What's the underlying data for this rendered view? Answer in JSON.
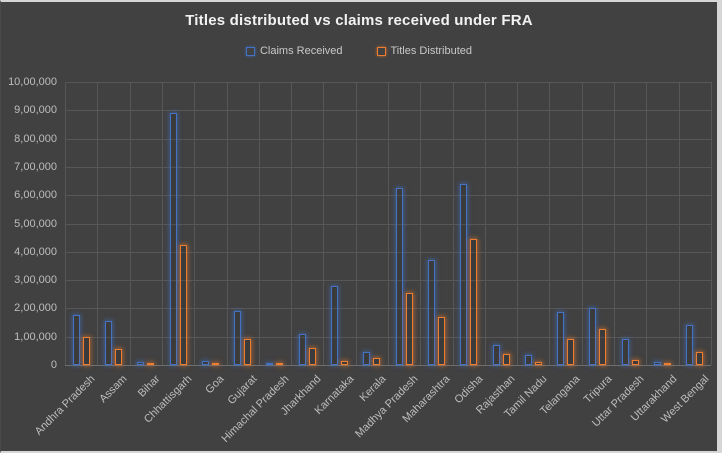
{
  "colors": {
    "background": "#414141",
    "gridline": "#575757",
    "axis_line": "#6f6f6f",
    "tick_text": "#bdbdbd",
    "title_text": "#f2f2f2",
    "claims_blue": "#4472c4",
    "titles_orange": "#ed7d31"
  },
  "chart_data": {
    "type": "bar",
    "title": "Titles distributed vs claims received under FRA",
    "legend_position": "top",
    "grid": true,
    "ylim": [
      0,
      1000000
    ],
    "y_tick_step": 100000,
    "y_tick_labels": [
      "10,00,000",
      "9,00,000",
      "8,00,000",
      "7,00,000",
      "6,00,000",
      "5,00,000",
      "4,00,000",
      "3,00,000",
      "2,00,000",
      "1,00,000",
      "0"
    ],
    "categories": [
      "Andhra Pradesh",
      "Assam",
      "Bihar",
      "Chhattisgarh",
      "Goa",
      "Gujarat",
      "Himachal Pradesh",
      "Jharkhand",
      "Karnataka",
      "Kerala",
      "Madhya Pradesh",
      "Maharashtra",
      "Odisha",
      "Rajasthan",
      "Tamil Nadu",
      "Telangana",
      "Tripura",
      "Uttar Pradesh",
      "Uttarakhand",
      "West Bengal"
    ],
    "series": [
      {
        "name": "Claims Received",
        "color": "#4472c4",
        "values": [
          175000,
          155000,
          10000,
          890000,
          15000,
          190000,
          7000,
          110000,
          280000,
          45000,
          627000,
          370000,
          640000,
          70000,
          35000,
          188000,
          200000,
          92000,
          10000,
          140000
        ]
      },
      {
        "name": "Titles Distributed",
        "color": "#ed7d31",
        "values": [
          100000,
          55000,
          5000,
          425000,
          6000,
          92000,
          6000,
          60000,
          15000,
          25000,
          255000,
          170000,
          445000,
          40000,
          10000,
          93000,
          128000,
          18000,
          6000,
          46000
        ]
      }
    ]
  }
}
